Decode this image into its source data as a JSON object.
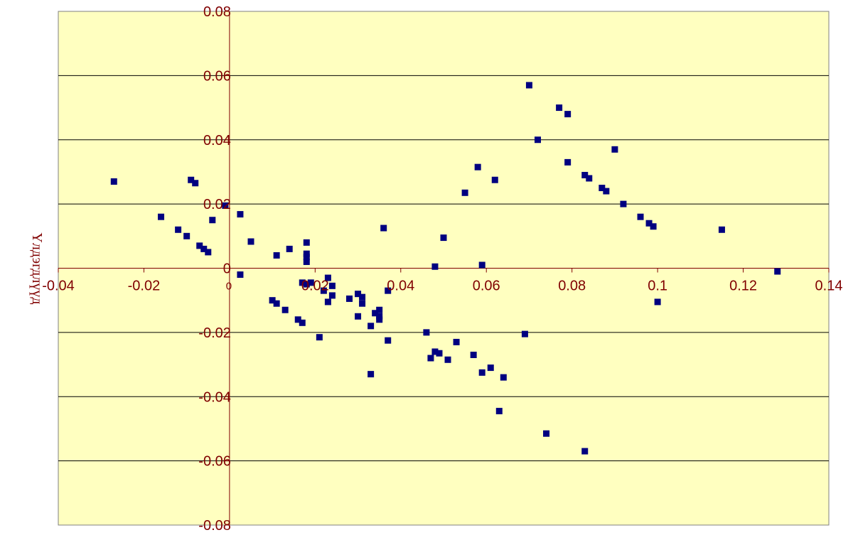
{
  "chart_data": {
    "type": "scatter",
    "ylabel": "Үлдэгдлүүд",
    "xlim": [
      -0.04,
      0.14
    ],
    "ylim": [
      -0.08,
      0.08
    ],
    "x_ticks": [
      "-0.04",
      "-0.02",
      "0",
      "0.02",
      "0.04",
      "0.06",
      "0.08",
      "0.1",
      "0.12",
      "0.14"
    ],
    "y_ticks": [
      "0.08",
      "0.06",
      "0.04",
      "0.02",
      "0",
      "-0.02",
      "-0.04",
      "-0.06",
      "-0.08"
    ],
    "grid": "horizontal",
    "colors": {
      "plot_background": "#ffffc0",
      "gridline": "#000000",
      "axis": "#800000",
      "marker": "#000080",
      "tick_text": "#800000"
    },
    "points": [
      [
        -0.027,
        0.027
      ],
      [
        -0.016,
        0.016
      ],
      [
        -0.012,
        0.012
      ],
      [
        -0.01,
        0.01
      ],
      [
        -0.009,
        0.0275
      ],
      [
        -0.008,
        0.0265
      ],
      [
        -0.007,
        0.007
      ],
      [
        -0.006,
        0.006
      ],
      [
        -0.005,
        0.005
      ],
      [
        -0.004,
        0.015
      ],
      [
        -0.001,
        0.0195
      ],
      [
        0.0025,
        0.0168
      ],
      [
        0.0025,
        -0.002
      ],
      [
        0.005,
        0.0083
      ],
      [
        0.01,
        -0.01
      ],
      [
        0.011,
        0.004
      ],
      [
        0.011,
        -0.011
      ],
      [
        0.013,
        -0.013
      ],
      [
        0.014,
        0.006
      ],
      [
        0.016,
        -0.016
      ],
      [
        0.017,
        -0.017
      ],
      [
        0.017,
        -0.0045
      ],
      [
        0.018,
        0.002
      ],
      [
        0.018,
        0.0035
      ],
      [
        0.018,
        0.0045
      ],
      [
        0.018,
        0.008
      ],
      [
        0.018,
        -0.005
      ],
      [
        0.019,
        -0.0045
      ],
      [
        0.021,
        -0.0215
      ],
      [
        0.022,
        -0.007
      ],
      [
        0.023,
        -0.003
      ],
      [
        0.023,
        -0.0105
      ],
      [
        0.024,
        -0.0085
      ],
      [
        0.024,
        -0.0055
      ],
      [
        0.028,
        -0.0095
      ],
      [
        0.03,
        -0.015
      ],
      [
        0.03,
        -0.008
      ],
      [
        0.031,
        -0.011
      ],
      [
        0.031,
        -0.009
      ],
      [
        0.033,
        -0.033
      ],
      [
        0.033,
        -0.018
      ],
      [
        0.034,
        -0.014
      ],
      [
        0.035,
        -0.016
      ],
      [
        0.035,
        -0.015
      ],
      [
        0.035,
        -0.013
      ],
      [
        0.036,
        0.0125
      ],
      [
        0.037,
        -0.007
      ],
      [
        0.037,
        -0.0225
      ],
      [
        0.046,
        -0.02
      ],
      [
        0.047,
        -0.028
      ],
      [
        0.048,
        0.0005
      ],
      [
        0.048,
        -0.026
      ],
      [
        0.049,
        -0.0265
      ],
      [
        0.05,
        0.0095
      ],
      [
        0.051,
        -0.0285
      ],
      [
        0.053,
        -0.023
      ],
      [
        0.055,
        0.0235
      ],
      [
        0.057,
        -0.027
      ],
      [
        0.058,
        0.0315
      ],
      [
        0.059,
        0.001
      ],
      [
        0.059,
        -0.0325
      ],
      [
        0.061,
        -0.031
      ],
      [
        0.062,
        0.0275
      ],
      [
        0.063,
        -0.0445
      ],
      [
        0.064,
        -0.034
      ],
      [
        0.069,
        -0.0205
      ],
      [
        0.07,
        0.057
      ],
      [
        0.072,
        0.04
      ],
      [
        0.074,
        -0.0515
      ],
      [
        0.077,
        0.05
      ],
      [
        0.079,
        0.048
      ],
      [
        0.079,
        0.033
      ],
      [
        0.083,
        0.029
      ],
      [
        0.083,
        -0.057
      ],
      [
        0.084,
        0.028
      ],
      [
        0.087,
        0.025
      ],
      [
        0.088,
        0.024
      ],
      [
        0.09,
        0.037
      ],
      [
        0.092,
        0.02
      ],
      [
        0.096,
        0.016
      ],
      [
        0.098,
        0.014
      ],
      [
        0.099,
        0.013
      ],
      [
        0.1,
        -0.0105
      ],
      [
        0.115,
        0.012
      ],
      [
        0.128,
        -0.001
      ]
    ]
  }
}
